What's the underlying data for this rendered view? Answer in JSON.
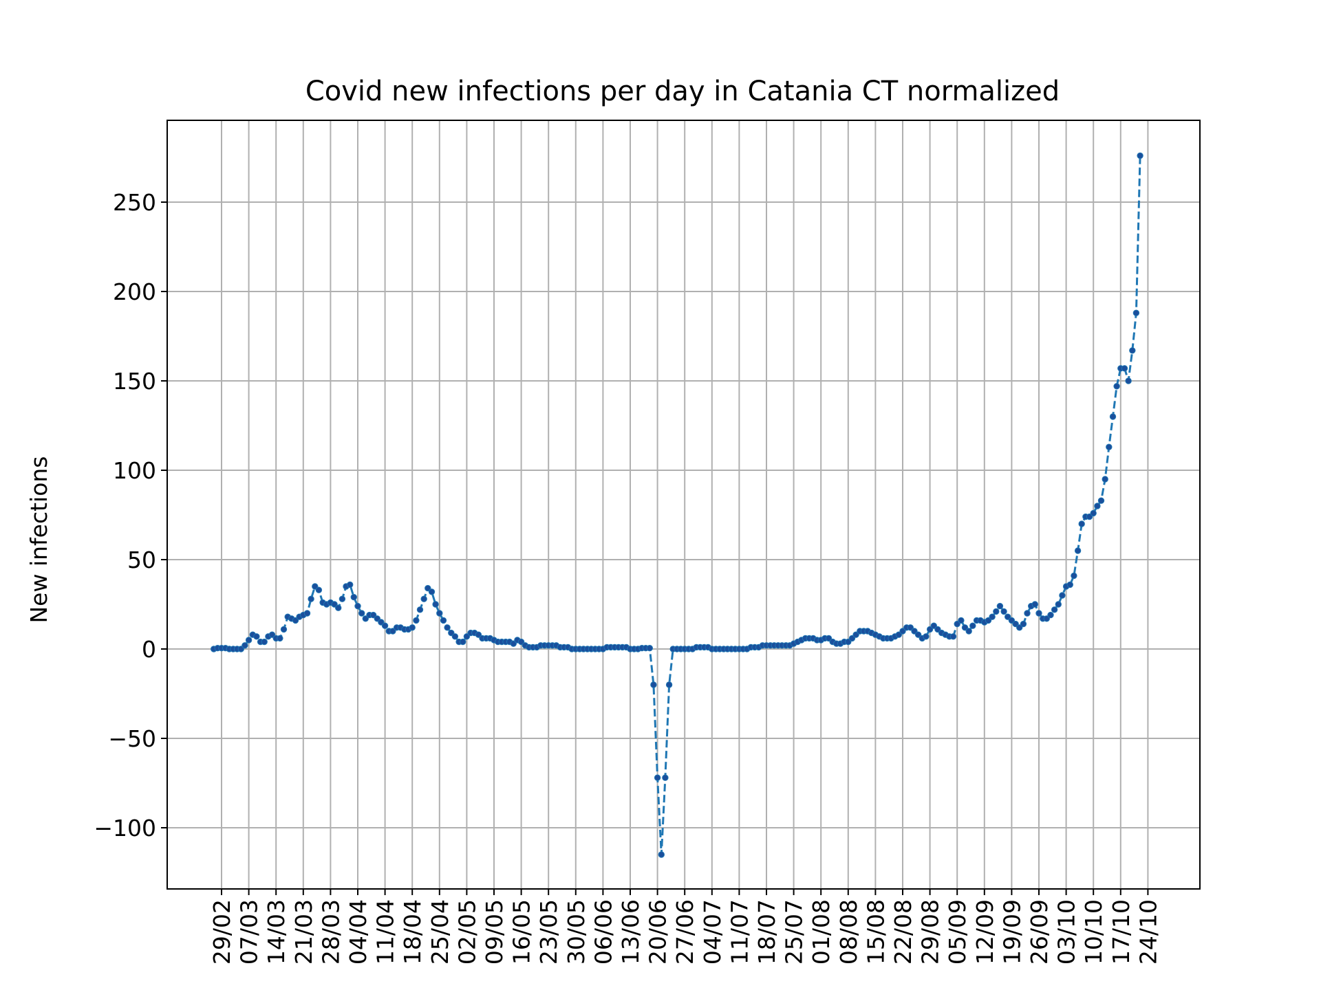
{
  "chart_data": {
    "type": "line",
    "title": "Covid new infections per day in Catania CT normalized",
    "xlabel": "",
    "ylabel": "New infections",
    "ylim": [
      -138,
      296
    ],
    "yticks": [
      -100,
      -50,
      0,
      50,
      100,
      150,
      200,
      250
    ],
    "ytick_labels": [
      "−100",
      "−50",
      "0",
      "50",
      "100",
      "150",
      "200",
      "250"
    ],
    "xtick_labels": [
      "29/02",
      "07/03",
      "14/03",
      "21/03",
      "28/03",
      "04/04",
      "11/04",
      "18/04",
      "25/04",
      "02/05",
      "09/05",
      "16/05",
      "23/05",
      "30/05",
      "06/06",
      "13/06",
      "20/06",
      "27/06",
      "04/07",
      "11/07",
      "18/07",
      "25/07",
      "01/08",
      "08/08",
      "15/08",
      "22/08",
      "29/08",
      "05/09",
      "12/09",
      "19/09",
      "26/09",
      "03/10",
      "10/10",
      "17/10",
      "24/10"
    ],
    "grid": true,
    "line_style": "dashed",
    "marker": "dot",
    "series_color": "#1f77b4",
    "series": [
      {
        "start_date": "2020-02-27",
        "values": [
          0,
          0.5,
          0.5,
          0.5,
          0,
          0,
          0,
          0,
          2,
          5,
          8,
          7,
          4,
          4,
          7,
          8,
          6,
          6,
          11,
          18,
          17,
          16,
          18,
          19,
          20,
          28,
          35,
          33,
          26,
          25,
          26,
          25,
          23,
          28,
          35,
          36,
          29,
          24,
          20,
          17,
          19,
          19,
          17,
          15,
          13,
          10,
          10,
          12,
          12,
          11,
          11,
          12,
          16,
          22,
          28,
          34,
          32,
          25,
          20,
          16,
          12,
          9,
          7,
          4,
          4,
          7,
          9,
          9,
          8,
          6,
          6,
          6,
          5,
          4,
          4,
          4,
          4,
          3,
          5,
          4,
          2,
          1,
          1,
          1,
          2,
          2,
          2,
          2,
          2,
          1,
          1,
          1,
          0,
          0,
          0,
          0,
          0,
          0,
          0,
          0,
          0,
          1,
          1,
          1,
          1,
          1,
          1,
          0,
          0,
          0,
          0.5,
          0.5,
          0.5,
          -20,
          -72,
          -115,
          -72,
          -20,
          0,
          0,
          0,
          0,
          0,
          0,
          1,
          1,
          1,
          1,
          0,
          0,
          0,
          0,
          0,
          0,
          0,
          0,
          0,
          0,
          1,
          1,
          1,
          2,
          2,
          2,
          2,
          2,
          2,
          2,
          2,
          3,
          4,
          5,
          6,
          6,
          6,
          5,
          5,
          6,
          6,
          4,
          3,
          3,
          4,
          4,
          6,
          8,
          10,
          10,
          10,
          9,
          8,
          7,
          6,
          6,
          6,
          7,
          8,
          10,
          12,
          12,
          10,
          8,
          6,
          7,
          11,
          13,
          11,
          9,
          8,
          7,
          7,
          14,
          16,
          12,
          10,
          13,
          16,
          16,
          15,
          16,
          18,
          21,
          24,
          21,
          18,
          16,
          14,
          12,
          14,
          20,
          24,
          25,
          20,
          17,
          17,
          19,
          22,
          25,
          30,
          35,
          36,
          41,
          55,
          70,
          74,
          74,
          76,
          80,
          83,
          95,
          113,
          130,
          147,
          157,
          157,
          150,
          167,
          188,
          276
        ]
      }
    ]
  }
}
